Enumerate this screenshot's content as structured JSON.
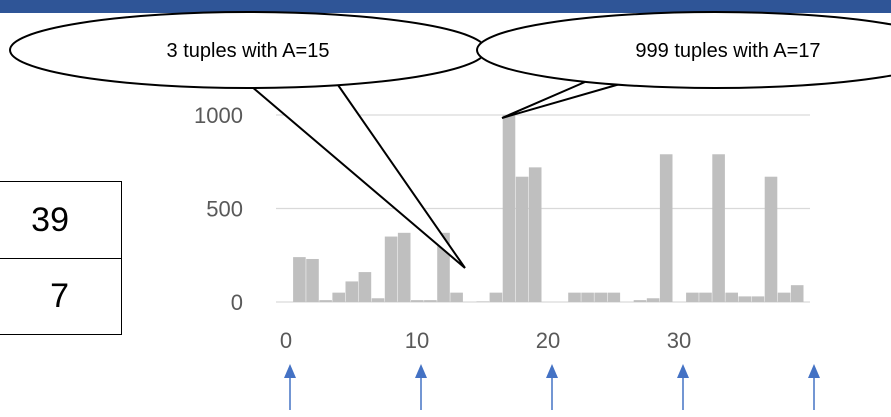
{
  "colors": {
    "bar": "#bfbfbf",
    "grid": "#d9d9d9",
    "tick_text": "#595959",
    "arrow": "#4472c4",
    "top_bar": "#2f5597"
  },
  "table": {
    "row1": "39",
    "row2": "7"
  },
  "callouts": {
    "left": "3 tuples with A=15",
    "right": "999 tuples with A=17"
  },
  "chart_data": {
    "type": "bar",
    "title": "",
    "xlabel": "",
    "ylabel": "",
    "ylim": [
      0,
      1000
    ],
    "xlim": [
      0,
      39
    ],
    "grid": true,
    "yticks": [
      0,
      500,
      1000
    ],
    "xticks": [
      0,
      10,
      20,
      30
    ],
    "ytick_labels": [
      "0",
      "500",
      "1000"
    ],
    "xtick_labels": [
      "0",
      "10",
      "20",
      "30"
    ],
    "x": [
      0,
      1,
      2,
      3,
      4,
      5,
      6,
      7,
      8,
      9,
      10,
      11,
      12,
      13,
      14,
      15,
      16,
      17,
      18,
      19,
      20,
      21,
      22,
      23,
      24,
      25,
      26,
      27,
      28,
      29,
      30,
      31,
      32,
      33,
      34,
      35,
      36,
      37,
      38,
      39
    ],
    "values": [
      0,
      240,
      230,
      10,
      50,
      110,
      160,
      20,
      350,
      370,
      10,
      10,
      370,
      50,
      0,
      3,
      50,
      999,
      670,
      720,
      0,
      0,
      50,
      50,
      50,
      50,
      0,
      10,
      20,
      790,
      0,
      50,
      50,
      790,
      50,
      30,
      30,
      670,
      50,
      90
    ],
    "markers_at_x": [
      0,
      10,
      20,
      30,
      40
    ]
  }
}
